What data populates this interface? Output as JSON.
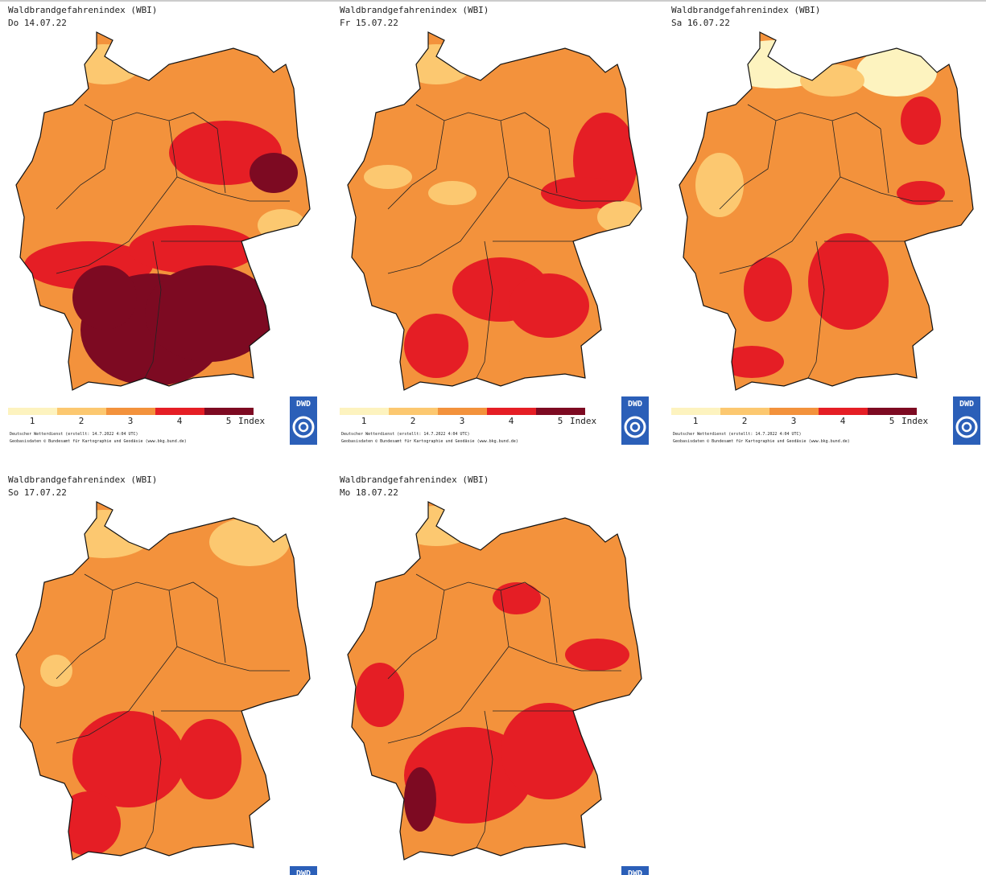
{
  "legend_colors": [
    "#fdf3bf",
    "#fcc870",
    "#f3923c",
    "#e51e25",
    "#7d0a22"
  ],
  "panels": [
    {
      "title": "Waldbrandgefahrenindex (WBI)",
      "date": "Do 14.07.22",
      "legend": {
        "labels": [
          "1",
          "2",
          "3",
          "4",
          "5"
        ],
        "unit": "Index"
      },
      "credits": [
        "Deutscher Wetterdienst (erstellt: 14.7.2022 4:04 UTC)",
        "Geobasisdaten © Bundesamt für Kartographie und Geodäsie (www.bkg.bund.de)"
      ],
      "logo": "DWD"
    },
    {
      "title": "Waldbrandgefahrenindex (WBI)",
      "date": "Fr 15.07.22",
      "legend": {
        "labels": [
          "1",
          "2",
          "3",
          "4",
          "5"
        ],
        "unit": "Index"
      },
      "credits": [
        "Deutscher Wetterdienst (erstellt: 14.7.2022 4:04 UTC)",
        "Geobasisdaten © Bundesamt für Kartographie und Geodäsie (www.bkg.bund.de)"
      ],
      "logo": "DWD"
    },
    {
      "title": "Waldbrandgefahrenindex (WBI)",
      "date": "Sa 16.07.22",
      "legend": {
        "labels": [
          "1",
          "2",
          "3",
          "4",
          "5"
        ],
        "unit": "Index"
      },
      "credits": [
        "Deutscher Wetterdienst (erstellt: 14.7.2022 4:04 UTC)",
        "Geobasisdaten © Bundesamt für Kartographie und Geodäsie (www.bkg.bund.de)"
      ],
      "logo": "DWD"
    },
    {
      "title": "Waldbrandgefahrenindex (WBI)",
      "date": "So 17.07.22",
      "logo": "DWD"
    },
    {
      "title": "Waldbrandgefahrenindex (WBI)",
      "date": "Mo 18.07.22",
      "logo": "DWD"
    }
  ]
}
